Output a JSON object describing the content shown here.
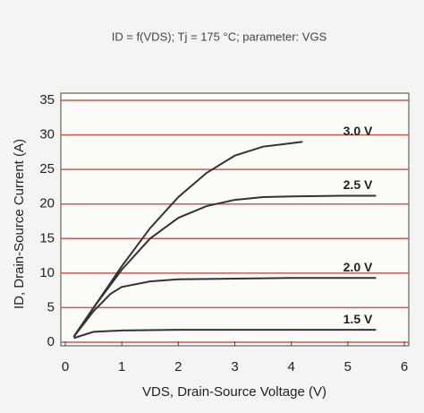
{
  "chart_data": {
    "type": "line",
    "title": "ID = f(VDS); Tj = 175 °C; parameter: VGS",
    "x_label": "VDS, Drain-Source Voltage (V)",
    "y_label": "ID, Drain-Source Current (A)",
    "xlim": [
      0,
      6
    ],
    "xticks": [
      0,
      1,
      2,
      3,
      4,
      5,
      6
    ],
    "ylim": [
      0,
      35
    ],
    "yticks": [
      0,
      5,
      10,
      15,
      20,
      25,
      30,
      35
    ],
    "grid": true,
    "grid_color": "#d9534f",
    "series": [
      {
        "name": "3.0 V",
        "color": "#333333",
        "x": [
          0.15,
          0.5,
          1,
          1.5,
          2,
          2.5,
          3,
          3.5,
          4,
          4.2
        ],
        "values": [
          0.8,
          5,
          11,
          16.5,
          21,
          24.5,
          27,
          28.3,
          28.8,
          29
        ]
      },
      {
        "name": "2.5 V",
        "color": "#333333",
        "x": [
          0.15,
          0.5,
          1,
          1.5,
          2,
          2.5,
          3,
          3.5,
          4,
          5,
          5.5
        ],
        "values": [
          0.8,
          5,
          10.5,
          15,
          18,
          19.7,
          20.6,
          21,
          21.1,
          21.2,
          21.2
        ]
      },
      {
        "name": "2.0 V",
        "color": "#333333",
        "x": [
          0.15,
          0.5,
          0.8,
          1,
          1.5,
          2,
          3,
          4,
          5,
          5.5
        ],
        "values": [
          0.8,
          4.5,
          7,
          8,
          8.8,
          9.1,
          9.2,
          9.3,
          9.3,
          9.3
        ]
      },
      {
        "name": "1.5 V",
        "color": "#333333",
        "x": [
          0.15,
          0.5,
          1,
          2,
          3,
          4,
          5,
          5.5
        ],
        "values": [
          0.6,
          1.5,
          1.7,
          1.8,
          1.8,
          1.8,
          1.8,
          1.8
        ]
      }
    ]
  }
}
